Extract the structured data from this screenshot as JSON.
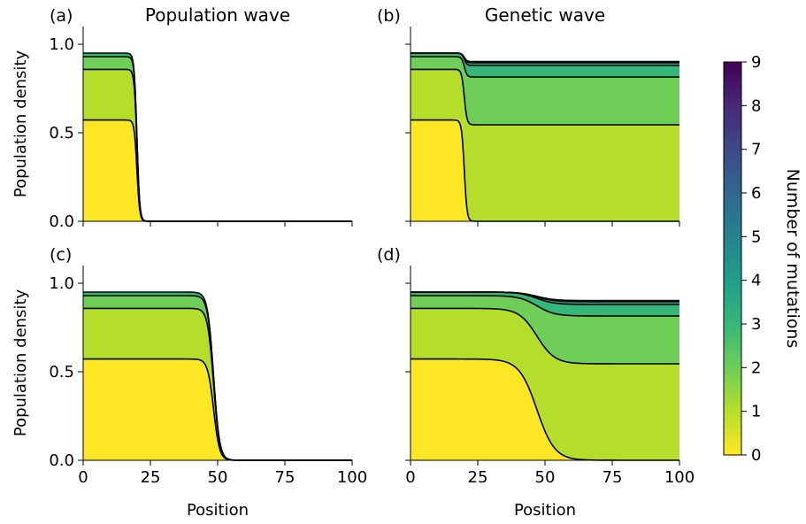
{
  "titles": {
    "a": "Population wave",
    "b": "Genetic wave"
  },
  "panel_labels": {
    "a": "(a)",
    "b": "(b)",
    "c": "(c)",
    "d": "(d)"
  },
  "ylabel": "Population density",
  "xlabel": "Position",
  "colorbar": {
    "label": "Number of mutations",
    "ticks": [
      "0",
      "1",
      "2",
      "3",
      "4",
      "5",
      "6",
      "7",
      "8",
      "9"
    ],
    "colormap": [
      "#fde725",
      "#b5de2b",
      "#6ece58",
      "#35b779",
      "#1f9e89",
      "#26828e",
      "#31688e",
      "#3e4989",
      "#482878",
      "#440154"
    ]
  },
  "x_ticks": [
    "0",
    "25",
    "50",
    "75",
    "100"
  ],
  "y_ticks": [
    "0.0",
    "0.5",
    "1.0"
  ],
  "chart_data": [
    {
      "panel": "a",
      "type": "area",
      "stacked": true,
      "xlim": [
        0,
        100
      ],
      "ylim": [
        0,
        1.1
      ],
      "front": 20,
      "front_width": 0.5,
      "behind": [
        0.572,
        0.858,
        0.93,
        0.95
      ],
      "ahead": [
        0,
        0,
        0,
        0
      ]
    },
    {
      "panel": "b",
      "type": "area",
      "stacked": true,
      "xlim": [
        0,
        100
      ],
      "ylim": [
        0,
        1.1
      ],
      "front": 20,
      "front_width": 0.5,
      "behind": [
        0.572,
        0.858,
        0.93,
        0.95
      ],
      "ahead": [
        0,
        0.545,
        0.815,
        0.88,
        0.896,
        0.9,
        0.902
      ]
    },
    {
      "panel": "c",
      "type": "area",
      "stacked": true,
      "xlim": [
        0,
        100
      ],
      "ylim": [
        0,
        1.1
      ],
      "front": 48.5,
      "front_width": 1.1,
      "behind": [
        0.572,
        0.858,
        0.93,
        0.95
      ],
      "ahead": [
        0,
        0,
        0,
        0
      ]
    },
    {
      "panel": "d",
      "type": "area",
      "stacked": true,
      "xlim": [
        0,
        100
      ],
      "ylim": [
        0,
        1.1
      ],
      "front": 47,
      "front_width": 3.3,
      "behind": [
        0.572,
        0.858,
        0.93,
        0.95
      ],
      "ahead": [
        0,
        0.545,
        0.815,
        0.88,
        0.896,
        0.9,
        0.902
      ]
    }
  ]
}
